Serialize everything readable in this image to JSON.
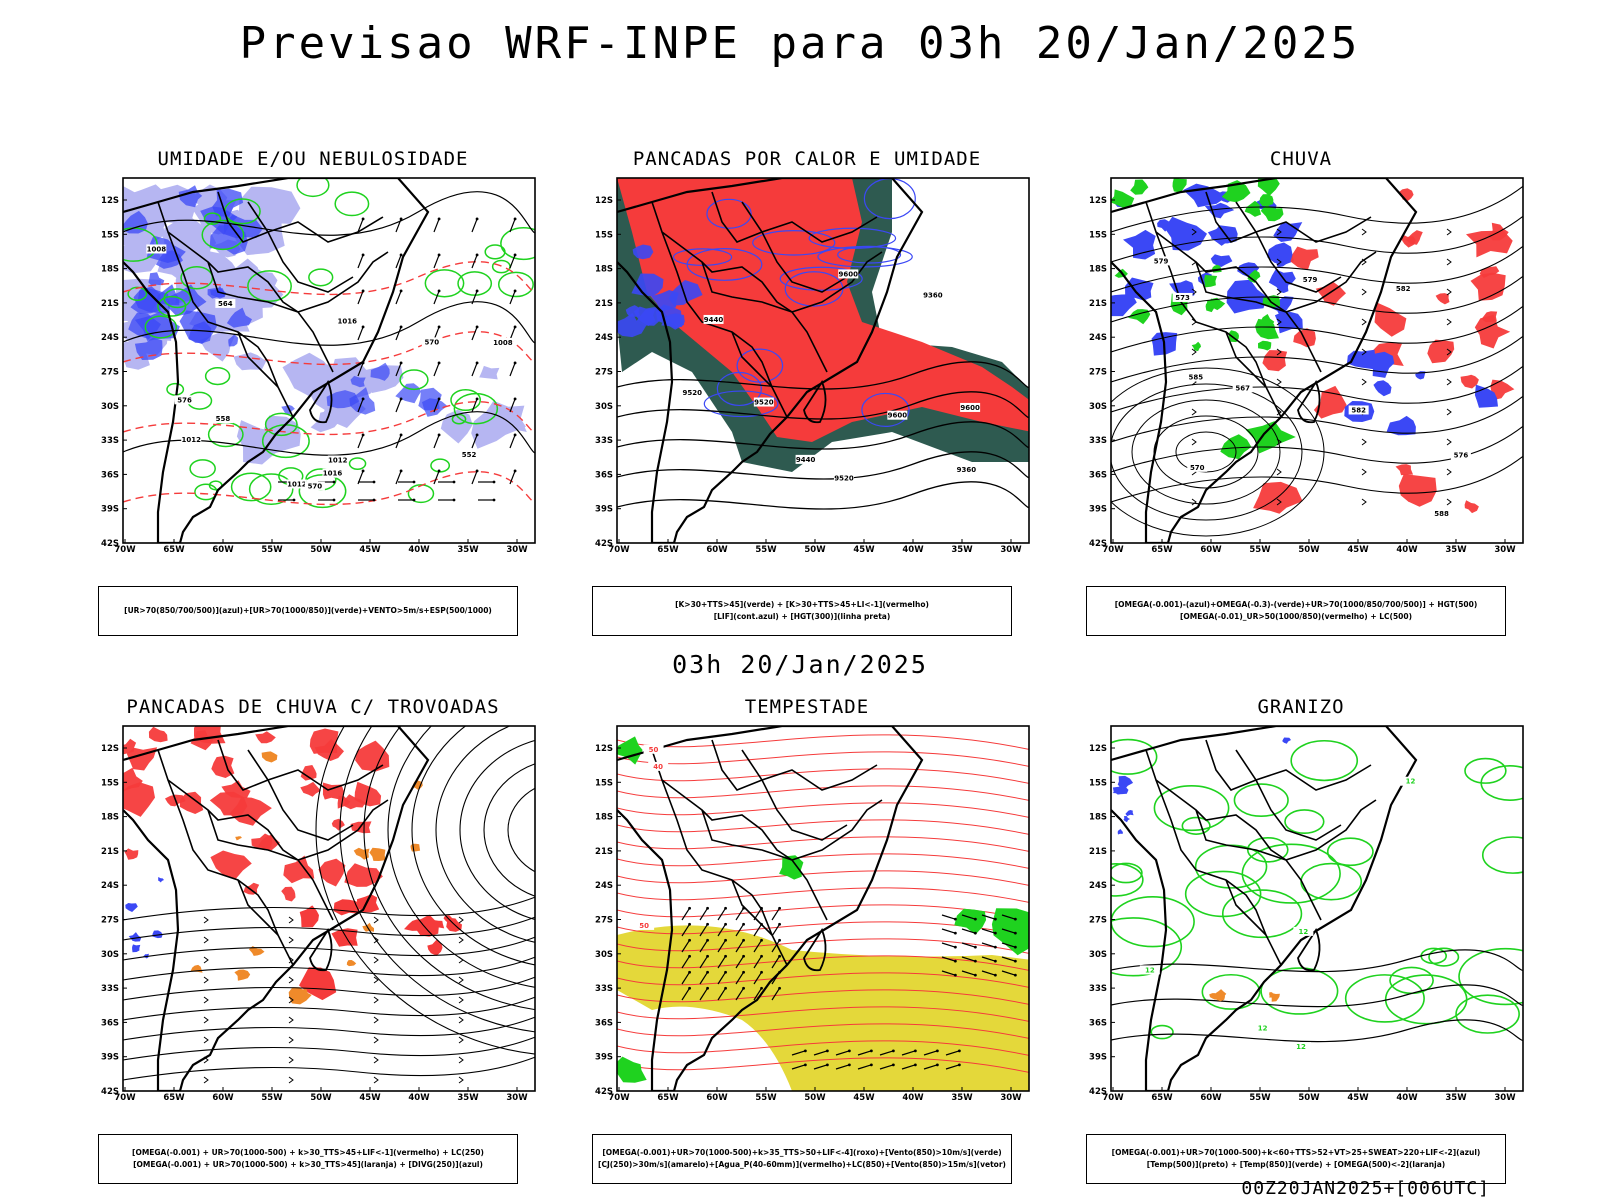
{
  "header": {
    "title": "Previsao WRF-INPE  para 03h 20/Jan/2025"
  },
  "middle": {
    "title": "03h 20/Jan/2025"
  },
  "footer": {
    "run_stamp": "00Z20JAN2025+[006UTC]"
  },
  "axes": {
    "lat_labels": [
      "12S",
      "15S",
      "18S",
      "21S",
      "24S",
      "27S",
      "30S",
      "33S",
      "36S",
      "39S",
      "42S"
    ],
    "lon_labels": [
      "70W",
      "65W",
      "60W",
      "55W",
      "50W",
      "45W",
      "40W",
      "35W",
      "30W"
    ]
  },
  "colors": {
    "blue": "#3b48f5",
    "light_blue": "#b6b6f2",
    "green": "#1fd21f",
    "red": "#f53b3b",
    "dark_teal": "#2e5a50",
    "orange": "#ef8a2a",
    "yellow": "#e4d83a"
  },
  "panels": [
    {
      "id": "umidade",
      "title": "UMIDADE E/OU NEBULOSIDADE",
      "legend": [
        "[UR>70(850/700/500)](azul)+[UR>70(1000/850)](verde)+VENTO>5m/s+ESP(500/1000)"
      ],
      "contour_labels": [
        "1012",
        "1012",
        "1016",
        "1008",
        "1008",
        "1012",
        "1016",
        "576",
        "570",
        "564",
        "558",
        "552",
        "570"
      ]
    },
    {
      "id": "pancadas-calor",
      "title": "PANCADAS POR CALOR E UMIDADE",
      "legend": [
        "[K>30+TTS>45](verde) + [K>30+TTS>45+LI<-1](vermelho)",
        "[LIF](cont.azul) + [HGT(300)](linha preta)"
      ],
      "contour_labels": [
        "9600",
        "9600",
        "9520",
        "9520",
        "9440",
        "9440",
        "9360",
        "9360",
        "9520",
        "9600"
      ]
    },
    {
      "id": "chuva",
      "title": "CHUVA",
      "legend": [
        "[OMEGA(-0.001)-(azul)+OMEGA(-0.3)-(verde)+UR>70(1000/850/700/500)] + HGT(500)",
        "[OMEGA(-0.01)_UR>50(1000/850)(vermelho) + LC(500)"
      ],
      "contour_labels": [
        "588",
        "585",
        "582",
        "579",
        "576",
        "573",
        "570",
        "567",
        "582",
        "579"
      ]
    },
    {
      "id": "pancadas-trovoadas",
      "title": "PANCADAS DE CHUVA C/ TROVOADAS",
      "legend": [
        "[OMEGA(-0.001) + UR>70(1000-500) + k>30_TTS>45+LIF<-1](vermelho) + LC(250)",
        "[OMEGA(-0.001) + UR>70(1000-500) + k>30_TTS>45](laranja) + [DIVG(250)](azul)"
      ],
      "contour_labels": []
    },
    {
      "id": "tempestade",
      "title": "TEMPESTADE",
      "legend": [
        "[OMEGA(-0.001)+UR>70(1000-500)+k>35_TTS>50+LIF<-4](roxo)+[Vento(850)>10m/s](verde)",
        "[CJ(250)>30m/s](amarelo)+[Agua_P(40-60mm)](vermelho)+LC(850)+[Vento(850)>15m/s](vetor)"
      ],
      "contour_labels": [
        "40",
        "50",
        "50"
      ]
    },
    {
      "id": "granizo",
      "title": "GRANIZO",
      "legend": [
        "[OMEGA(-0.001)+UR>70(1000-500)+k<60+TTS>52+VT>25+SWEAT>220+LIF<-2](azul)",
        "[Temp(500)](preto) + [Temp(850)](verde) + [OMEGA(500)<-2](laranja)"
      ],
      "contour_labels": [
        "12",
        "12",
        "12",
        "12",
        "12"
      ]
    }
  ]
}
